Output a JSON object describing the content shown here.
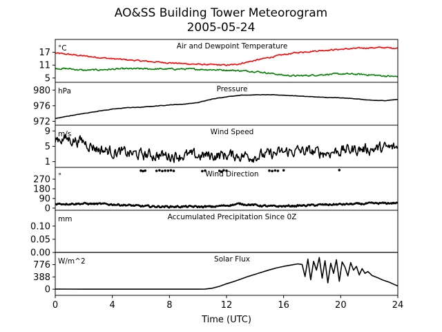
{
  "title": "AO&SS Building Tower Meteorogram",
  "subtitle": "2005-05-24",
  "chart_data": {
    "type": "line",
    "xlabel": "Time (UTC)",
    "xlim": [
      0,
      24
    ],
    "x_ticks": [
      0,
      4,
      8,
      12,
      16,
      20,
      24
    ],
    "panels": [
      {
        "title": "Air and Dewpoint Temperature",
        "unit": "°C",
        "ylim": [
          3,
          23
        ],
        "y_ticks": [
          5,
          11,
          17
        ],
        "series": [
          {
            "color": "#ff0000",
            "style": "line",
            "noise": 0.25,
            "x": [
              0,
              1,
              2,
              3,
              4,
              5,
              6,
              7,
              8,
              9,
              10,
              11,
              12,
              12.5,
              13,
              14,
              15,
              16,
              17,
              18,
              19,
              20,
              21,
              22,
              23,
              24
            ],
            "y": [
              16.6,
              16,
              15.3,
              14.6,
              14,
              13.5,
              13,
              12.5,
              12.1,
              11.7,
              11.4,
              11.2,
              11,
              11.2,
              11.8,
              13.2,
              14.6,
              15.9,
              16.9,
              17.5,
              18,
              18.4,
              18.8,
              19.1,
              19.2,
              18.9
            ]
          },
          {
            "color": "#008000",
            "style": "line",
            "noise": 0.3,
            "x": [
              0,
              1,
              2,
              3,
              4,
              5,
              6,
              7,
              8,
              9,
              10,
              11,
              12,
              13,
              14,
              15,
              16,
              17,
              18,
              19,
              20,
              21,
              22,
              23,
              24
            ],
            "y": [
              9.5,
              9.3,
              8.6,
              8.8,
              9.1,
              9.3,
              9.3,
              9.2,
              9.2,
              9.2,
              9.1,
              8.9,
              8.7,
              8.4,
              8.1,
              7.3,
              6.3,
              6,
              6.3,
              6.7,
              6.9,
              6.8,
              6.5,
              6,
              5.6
            ]
          }
        ]
      },
      {
        "title": "Pressure",
        "unit": "hPa",
        "ylim": [
          971,
          982
        ],
        "y_ticks": [
          972,
          976,
          980
        ],
        "series": [
          {
            "color": "#000000",
            "style": "line",
            "noise": 0.04,
            "x": [
              0,
              1,
              2,
              3,
              4,
              5,
              6,
              7,
              8,
              9,
              10,
              11,
              12,
              13,
              14,
              15,
              16,
              17,
              18,
              19,
              20,
              21,
              22,
              23,
              24
            ],
            "y": [
              972.7,
              973.4,
              974,
              974.6,
              975.1,
              975.5,
              975.6,
              975.9,
              976.2,
              976.4,
              976.8,
              977.7,
              978.3,
              978.7,
              978.8,
              978.8,
              978.7,
              978.5,
              978.3,
              978.1,
              978,
              977.8,
              977.4,
              977.3,
              977.6
            ]
          }
        ]
      },
      {
        "title": "Wind Speed",
        "unit": "m/s",
        "ylim": [
          -0.5,
          10.5
        ],
        "y_ticks": [
          1,
          5,
          9
        ],
        "series": [
          {
            "color": "#000000",
            "style": "line",
            "noise": 1.2,
            "x": [
              0,
              1,
              2,
              3,
              4,
              5,
              6,
              7,
              8,
              9,
              10,
              11,
              12,
              13,
              14,
              15,
              16,
              17,
              18,
              19,
              20,
              21,
              22,
              23,
              24
            ],
            "y": [
              7.2,
              6.8,
              6.2,
              4.3,
              3.6,
              3.2,
              2.8,
              2.7,
              2.6,
              2.6,
              2.5,
              2.6,
              2.7,
              2.6,
              2.5,
              2.8,
              3.4,
              3.8,
              3.5,
              3.3,
              3.9,
              4.2,
              4.3,
              4.5,
              4.6
            ]
          }
        ]
      },
      {
        "title": "Wind Direction",
        "unit": "°",
        "ylim": [
          -20,
          380
        ],
        "y_ticks": [
          0,
          90,
          180,
          270
        ],
        "series": [
          {
            "color": "#000000",
            "style": "line",
            "noise": 7,
            "x": [
              0,
              2,
              4,
              5,
              6,
              7,
              8,
              9,
              10,
              11,
              12,
              13,
              14,
              15,
              16,
              17,
              18,
              19,
              20,
              21,
              22,
              23,
              24
            ],
            "y": [
              40,
              42,
              35,
              28,
              18,
              15,
              14,
              14,
              13,
              13,
              25,
              40,
              28,
              16,
              18,
              22,
              27,
              32,
              35,
              38,
              42,
              45,
              48
            ]
          },
          {
            "color": "#000000",
            "style": "dots",
            "x": [
              6,
              6.15,
              6.3,
              7.1,
              7.3,
              7.5,
              7.7,
              7.9,
              8.1,
              8.3,
              10.3,
              10.5,
              11.5,
              11.65,
              11.8,
              12.0,
              15.0,
              15.2,
              15.4,
              15.6,
              16.0,
              19.9
            ],
            "y": [
              350,
              345,
              350,
              348,
              352,
              346,
              350,
              349,
              352,
              347,
              345,
              350,
              348,
              340,
              352,
              349,
              350,
              346,
              351,
              348,
              352,
              355
            ]
          }
        ]
      },
      {
        "title": "Accumulated Precipitation Since 0Z",
        "unit": "mm",
        "ylim": [
          0,
          0.16
        ],
        "y_ticks": [
          0.0,
          0.05,
          0.1
        ],
        "y_tick_labels": [
          "0.00",
          "0.05",
          "0.10"
        ],
        "series": [
          {
            "color": "#000000",
            "style": "line",
            "noise": 0,
            "x": [
              0,
              24
            ],
            "y": [
              0,
              0
            ]
          }
        ]
      },
      {
        "title": "Solar Flux",
        "unit": "W/m^2",
        "ylim": [
          -194,
          1160
        ],
        "y_ticks": [
          0,
          388,
          776
        ],
        "series": [
          {
            "color": "#000000",
            "style": "line",
            "noise": 0,
            "x": [
              0,
              1,
              2,
              3,
              4,
              5,
              6,
              7,
              8,
              9,
              10,
              10.5,
              11,
              11.5,
              12,
              12.5,
              13,
              13.5,
              14,
              14.5,
              15,
              15.5,
              16,
              16.5,
              17,
              17.3,
              17.5,
              17.7,
              17.9,
              18.1,
              18.3,
              18.5,
              18.7,
              18.9,
              19.1,
              19.3,
              19.5,
              19.7,
              19.9,
              20.1,
              20.3,
              20.5,
              20.7,
              20.9,
              21.1,
              21.3,
              21.5,
              21.7,
              21.9,
              22.2,
              22.6,
              23,
              23.4,
              23.7,
              24
            ],
            "y": [
              5,
              3,
              0,
              0,
              0,
              0,
              0,
              0,
              0,
              0,
              0,
              5,
              30,
              90,
              170,
              240,
              320,
              400,
              470,
              540,
              610,
              670,
              720,
              760,
              800,
              780,
              400,
              950,
              300,
              880,
              600,
              1000,
              350,
              900,
              200,
              820,
              500,
              930,
              250,
              860,
              700,
              420,
              840,
              600,
              720,
              450,
              650,
              500,
              560,
              430,
              360,
              280,
              220,
              160,
              100
            ]
          }
        ]
      }
    ]
  }
}
